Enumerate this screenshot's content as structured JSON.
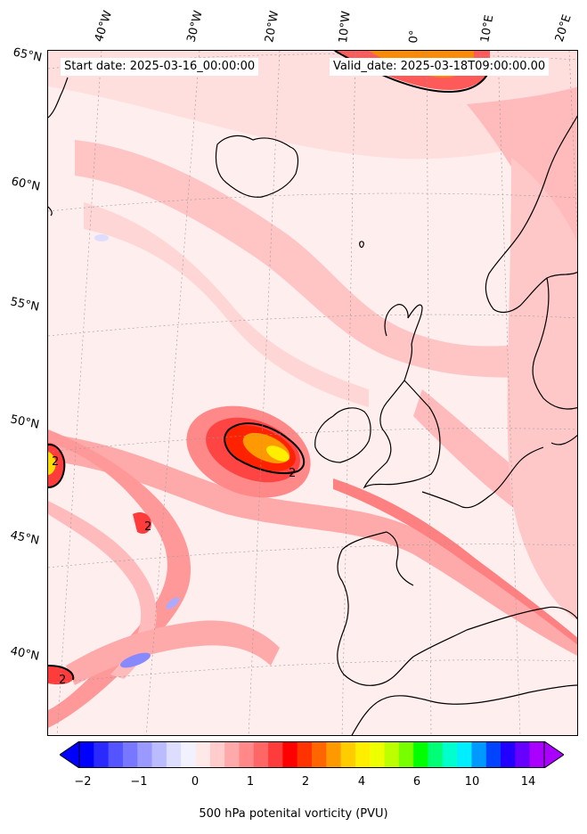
{
  "header": {
    "start_date": "Start date: 2025-03-16_00:00:00",
    "valid_date": "Valid_date: 2025-03-18T09:00:00.00"
  },
  "axes": {
    "longitudes": [
      "40°W",
      "30°W",
      "20°W",
      "10°W",
      "0°",
      "10°E",
      "20°E"
    ],
    "latitudes": [
      "65°N",
      "60°N",
      "55°N",
      "50°N",
      "45°N",
      "40°N"
    ]
  },
  "contour_labels": [
    "2",
    "2",
    "2",
    "2"
  ],
  "colorbar": {
    "ticks": [
      "−2",
      "−1",
      "0",
      "1",
      "2",
      "4",
      "6",
      "10",
      "14"
    ],
    "label": "500 hPa potenital vorticity (PVU)",
    "colors": [
      "#0000ff",
      "#2a2aff",
      "#5555ff",
      "#7777ff",
      "#9999ff",
      "#bbbbff",
      "#ddddff",
      "#f2f2ff",
      "#ffe8e8",
      "#ffcccc",
      "#ffaaaa",
      "#ff8888",
      "#ff6666",
      "#ff3c3c",
      "#ff0000",
      "#ff3300",
      "#ff6600",
      "#ff9900",
      "#ffcc00",
      "#ffee00",
      "#eeff00",
      "#bbff00",
      "#77ff00",
      "#00ff00",
      "#00ff77",
      "#00ffcc",
      "#00eeff",
      "#0099ff",
      "#0044ff",
      "#2200ff",
      "#6600ff",
      "#aa00ff"
    ]
  },
  "colors": {
    "background_pv": "#fff0f0",
    "pv_light": "#ffcccc",
    "pv_medium": "#ffaaaa",
    "pv_strong": "#ff6666",
    "pv_max": "#ff0000",
    "pv_core": "#ffdd00",
    "coastline": "#000000"
  }
}
